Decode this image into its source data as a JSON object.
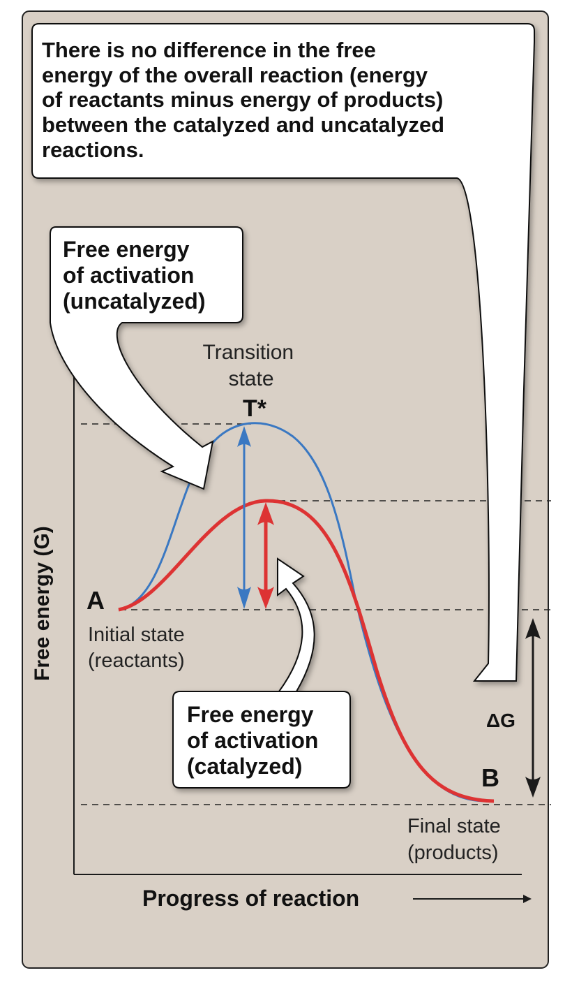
{
  "callouts": {
    "overall": [
      "There is no difference in the free",
      "energy of the overall reaction (energy",
      "of reactants minus energy of products)",
      "between the catalyzed and uncatalyzed",
      "reactions."
    ],
    "uncatalyzed": [
      "Free energy",
      "of activation",
      "(uncatalyzed)"
    ],
    "catalyzed": [
      "Free energy",
      "of activation",
      "(catalyzed)"
    ]
  },
  "labels": {
    "transition": [
      "Transition",
      "state"
    ],
    "t_star": "T*",
    "a": "A",
    "initial": [
      "Initial state",
      "(reactants)"
    ],
    "b": "B",
    "final": [
      "Final state",
      "(products)"
    ],
    "delta_g": "ΔG"
  },
  "axes": {
    "y_label": "Free energy (G)",
    "x_label": "Progress of reaction"
  },
  "colors": {
    "background": "#d9d0c6",
    "uncatalyzed": "#3a78c2",
    "catalyzed": "#dd3333",
    "ink": "#1a1a1a"
  }
}
